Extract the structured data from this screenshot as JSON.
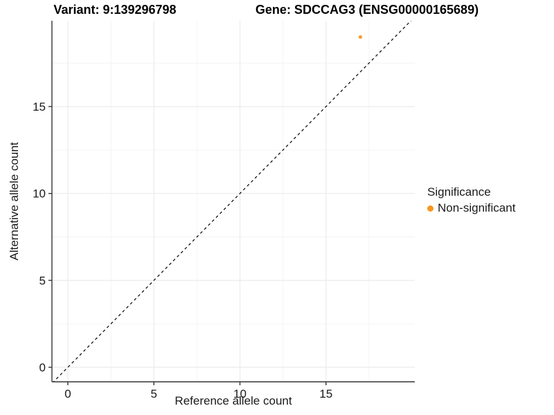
{
  "chart_data": {
    "type": "scatter",
    "title_left": "Variant: 9:139296798",
    "title_right": "Gene: SDCCAG3 (ENSG00000165689)",
    "xlabel": "Reference allele count",
    "ylabel": "Alternative allele count",
    "xlim": [
      -0.95,
      20.2
    ],
    "ylim": [
      -0.85,
      20.0
    ],
    "x_major_ticks": [
      0,
      5,
      10,
      15
    ],
    "x_minor_ticks": [
      2.5,
      7.5,
      12.5,
      17.5
    ],
    "y_major_ticks": [
      0,
      5,
      10,
      15
    ],
    "y_minor_ticks": [
      2.5,
      7.5,
      12.5,
      17.5
    ],
    "grid": "major+minor",
    "points": [
      {
        "x": 17,
        "y": 19,
        "series": "Non-significant"
      }
    ],
    "identity_line": {
      "style": "dashed",
      "color": "#000000",
      "from": [
        -0.9,
        -0.9
      ],
      "to": [
        20.5,
        20.5
      ]
    },
    "legend": {
      "title": "Significance",
      "position": "right",
      "entries": [
        {
          "label": "Non-significant",
          "color": "#F8961F"
        }
      ]
    },
    "colors": {
      "point": "#F89E2B",
      "grid_major": "#EBEBEB",
      "grid_minor": "#F4F4F4",
      "axis": "#333333",
      "text": "#1A1A1A",
      "background": "#FFFFFF"
    }
  }
}
